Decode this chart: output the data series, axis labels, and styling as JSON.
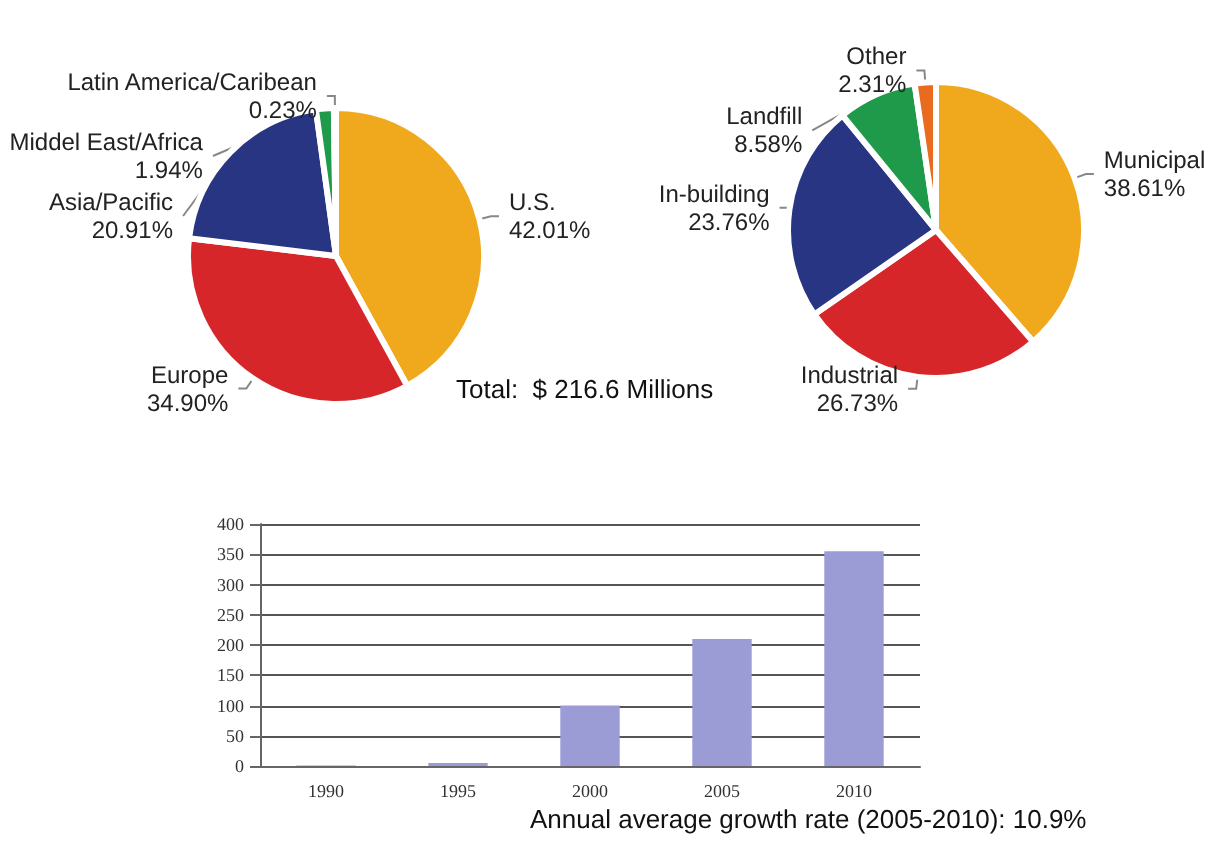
{
  "chart_data": [
    {
      "type": "pie",
      "categories": [
        "U.S.",
        "Europe",
        "Asia/Pacific",
        "Middel East/Africa",
        "Latin America/Caribean"
      ],
      "values": [
        42.01,
        34.9,
        20.91,
        1.94,
        0.23
      ],
      "value_labels": [
        "42.01%",
        "34.90%",
        "20.91%",
        "1.94%",
        "0.23%"
      ],
      "colors": [
        "#f0a81c",
        "#d7262a",
        "#283583",
        "#1e9a4a",
        "#c8c8c8"
      ]
    },
    {
      "type": "pie",
      "categories": [
        "Municipal",
        "Industrial",
        "In-building",
        "Landfill",
        "Other"
      ],
      "values": [
        38.61,
        26.73,
        23.76,
        8.58,
        2.31
      ],
      "value_labels": [
        "38.61%",
        "26.73%",
        "23.76%",
        "8.58%",
        "2.31%"
      ],
      "colors": [
        "#f0a81c",
        "#d7262a",
        "#283583",
        "#1e9a4a",
        "#e86b1f"
      ],
      "annotations": [
        "Total:  $ 216.6 Millions"
      ]
    },
    {
      "type": "bar",
      "categories": [
        "1990",
        "1995",
        "2000",
        "2005",
        "2010"
      ],
      "values": [
        1,
        5,
        100,
        210,
        355
      ],
      "color": "#9b9bd6",
      "ylim": [
        0,
        400
      ],
      "yticks": [
        0,
        50,
        100,
        150,
        200,
        250,
        300,
        350,
        400
      ],
      "grid": "y",
      "annotations": [
        "Annual average growth rate (2005-2010): 10.9%"
      ]
    }
  ]
}
